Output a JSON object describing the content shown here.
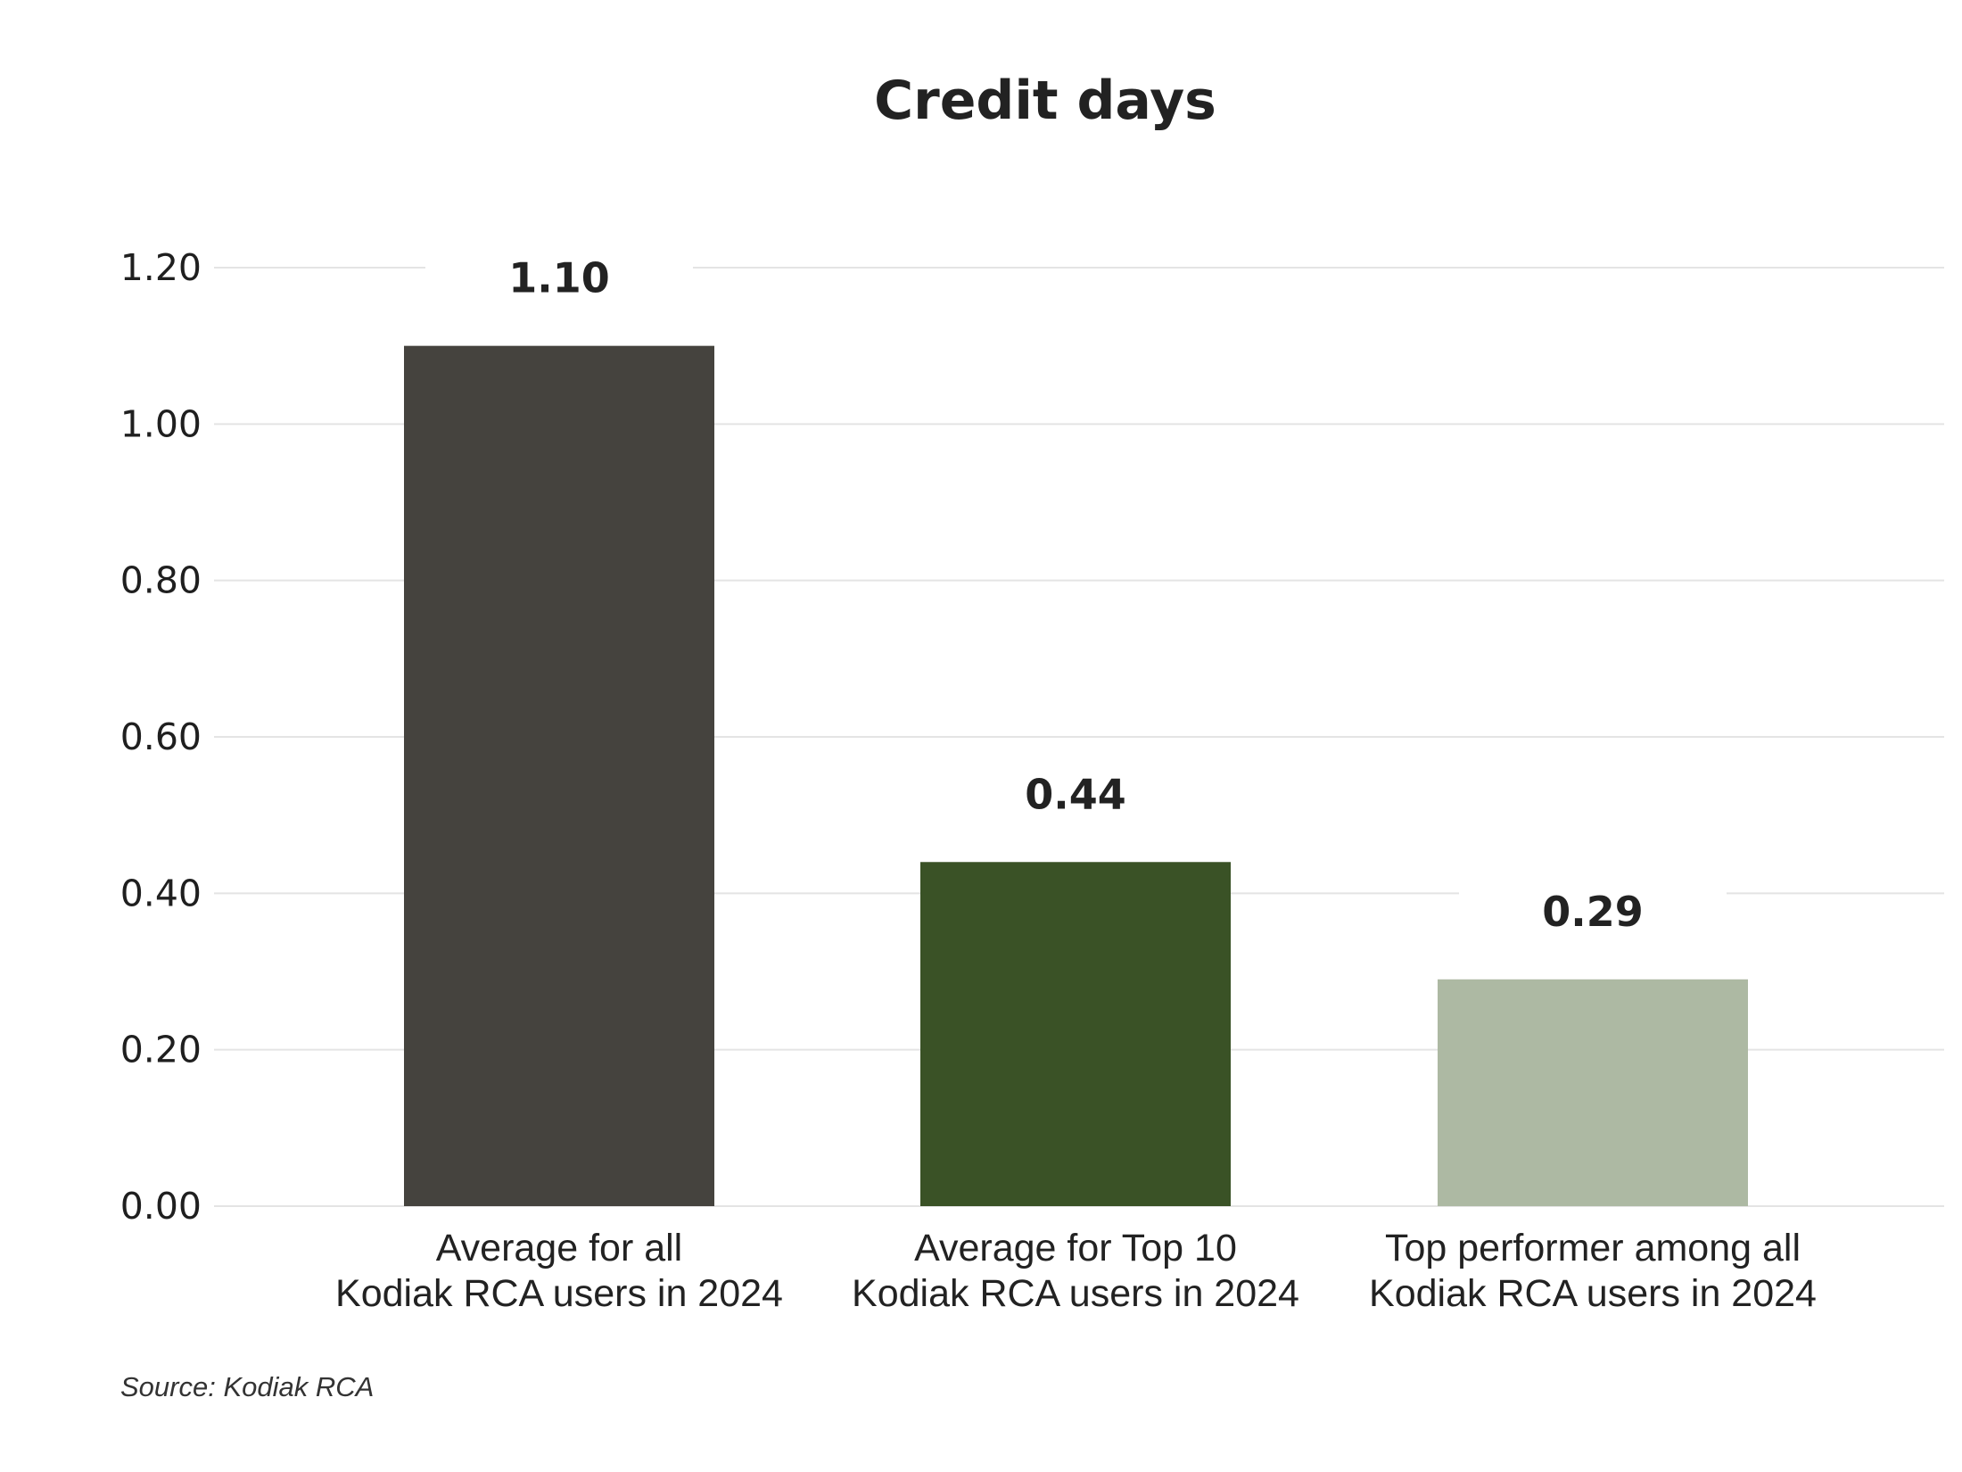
{
  "chart_data": {
    "type": "bar",
    "title": "Credit days",
    "xlabel": "",
    "ylabel": "",
    "categories": [
      [
        "Average for all",
        "Kodiak RCA users in 2024"
      ],
      [
        "Average for Top 10",
        "Kodiak RCA users in 2024"
      ],
      [
        "Top performer among all",
        "Kodiak RCA users in 2024"
      ]
    ],
    "values": [
      1.1,
      0.44,
      0.29
    ],
    "value_labels": [
      "1.10",
      "0.44",
      "0.29"
    ],
    "bar_colors": [
      "#45433e",
      "#3a5226",
      "#adb9a3"
    ],
    "ylim": [
      0,
      1.2
    ],
    "yticks": [
      0,
      0.2,
      0.4,
      0.6,
      0.8,
      1.0,
      1.2
    ],
    "ytick_labels": [
      "0.00",
      "0.20",
      "0.40",
      "0.60",
      "0.80",
      "1.00",
      "1.20"
    ],
    "grid": true,
    "legend": "none",
    "source": "Source: Kodiak RCA"
  }
}
